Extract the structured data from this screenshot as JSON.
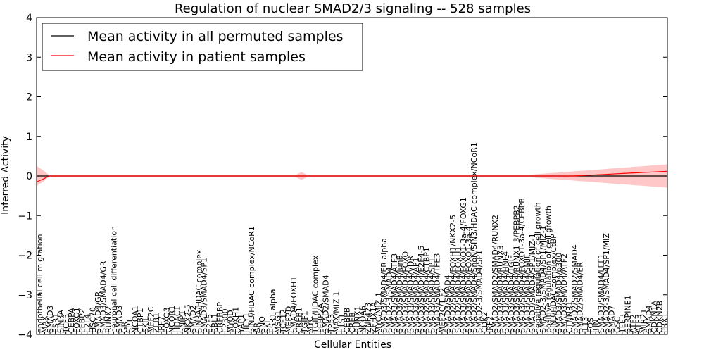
{
  "chart_data": {
    "type": "line",
    "title": "Regulation of nuclear SMAD2/3 signaling -- 528 samples",
    "xlabel": "Cellular Entities",
    "ylabel": "Inferred Activity",
    "ylim": [
      -4,
      4
    ],
    "yticks": [
      -4,
      -3,
      -2,
      -1,
      0,
      1,
      2,
      3,
      4
    ],
    "legend": {
      "placement": "top-left"
    },
    "series": [
      {
        "name": "Mean activity in all permuted samples",
        "color": "#000000"
      },
      {
        "name": "Mean activity in patient samples",
        "color": "#ff0000"
      }
    ],
    "categories": [
      "endothelial cell migration",
      "MAX",
      "SMAD3",
      "ESR1",
      "SIN3A",
      "TCF3",
      "CEBPA",
      "FOXO1",
      "PEBP2",
      "E2F4",
      "HSC70",
      "SMAD4/GR",
      "SMAD3/SMAD4/GR",
      "RUNX2",
      "neuronal cell differentiation",
      "SMAD3",
      "GR",
      "SP1",
      "NCOA1",
      "CTBP1",
      "SKIL",
      "MEF2C",
      "ZEB1",
      "IRF7",
      "FOXO3",
      "NCOR1",
      "HDAC1",
      "SNIP1",
      "NKX2-5",
      "SMAD2",
      "SIN3A/HDAC complex",
      "SMAD3/SMAD4/SP1",
      "E2F5",
      "RBL1",
      "CREBBP",
      "EP300",
      "MYOD",
      "FOXH1",
      "YAP1",
      "HEY1",
      "SIN3/HDAC complex/NCoR1",
      "AR",
      "SNO",
      "SKI",
      "ESR1 alpha",
      "MSG1",
      "TCF12",
      "MEF2D",
      "SMAD4/FOXH1",
      "CREB1",
      "TGIF1",
      "MYC",
      "TGIF/HDAC complex",
      "PEBP2A",
      "SMAD2/SMAD4",
      "TP53",
      "MAX/MIZ-1",
      "ETS1",
      "CEBPB",
      "CREB",
      "RUNX1",
      "NCOA6",
      "ZNF423",
      "ZFHX1A",
      "MYC/MIZ-1",
      "SMAD3/SMAD4/ER alpha",
      "SMAD2-3/SMAD4",
      "SMAD3/SMAD4/ATF3",
      "SMAD3/SMAD4/JunB",
      "SMAD3/SMAD4/FOXO",
      "SMAD3/SMAD4/VDR",
      "SMAD3/SMAD4/AP1",
      "SMAD3/SMAD4/E2F4-5",
      "SMAD2/SMAD4/CTBP1",
      "SMAD3/SMAD4/SP1",
      "SMAD3/SMAD4/TFE3",
      "MEF2C/TIF2",
      "SMAD3/SMAD4",
      "SMAD2/SMAD4/FOXH1/NKX2-5",
      "SMAD2/SMAD4/FOXH1",
      "SMAD3/SMAD4/FOXO1-3a-4/FOXG1",
      "SMAD3/SMAD4/FOXO1-3a-4",
      "SMAD2/SMAD4/SnoN/SIN3/HDAC complex/NCoR1",
      "SMAD2-3/SMAD4/SP1",
      "CDK2",
      "IRF2",
      "SMAD2/SMAD2/SMAD4/RUNX2",
      "SMAD3/SMAD4/RUNX3",
      "SMAD3/SMAD4/HNF4",
      "SMAD3/SMAD4/TGIF",
      "SMAD3/SMAD4/RUNX1-3/PEBPB2",
      "SMAD3/SMAD4/FOXO1-3a-4/CEBPB",
      "SMAD3/SMAD4/SMIF",
      "SMAD3/SMAD4/SP1/MIZ-1",
      "negative regulation of cell growth",
      "SMAD2-3/SMAD4/SP1/MIZ-1",
      "positive regulation of cell growth",
      "SIN3/HDAC complex/CtBP",
      "SMAD3/SMAD4/p300",
      "SMAD3/SMAD4/ATF2",
      "CTNNB1",
      "SMAD2/SMAD2/SMAD4",
      "SMAD2/SMAD4/ER",
      "IL13",
      "FOS",
      "JUN",
      "SMAD3/SMAD4/LEF1",
      "SMAD2-3/SMAD4/SP1/MIZ",
      "SMAD7",
      "GSC",
      "TFE3",
      "SERPINE1",
      "ATF2",
      "ATF3",
      "MIR21",
      "SMAD4",
      "CDKN1A",
      "CDKN2B",
      "PBX1"
    ]
  }
}
